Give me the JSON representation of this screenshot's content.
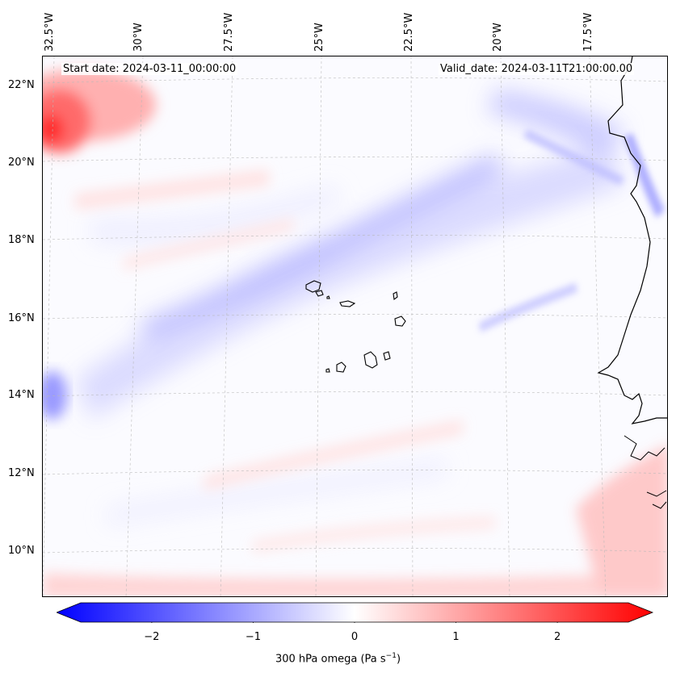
{
  "map": {
    "start_date": "Start date: 2024-03-11_00:00:00",
    "valid_date": "Valid_date: 2024-03-11T21:00:00.00",
    "lon_labels": [
      "32.5°W",
      "30°W",
      "27.5°W",
      "25°W",
      "22.5°W",
      "20°W",
      "17.5°W"
    ],
    "lat_labels": [
      "22°N",
      "20°N",
      "18°N",
      "16°N",
      "14°N",
      "12°N",
      "10°N"
    ]
  },
  "colorbar": {
    "label_prefix": "300 hPa omega (Pa s",
    "label_exp": "−1",
    "label_suffix": ")",
    "ticks": [
      "−2",
      "−1",
      "0",
      "1",
      "2"
    ],
    "tick_values": [
      -2,
      -1,
      0,
      1,
      2
    ],
    "range": [
      -2.7,
      2.7
    ],
    "colors": {
      "min": "#0000ff",
      "mid": "#ffffff",
      "max": "#ff0000"
    }
  }
}
